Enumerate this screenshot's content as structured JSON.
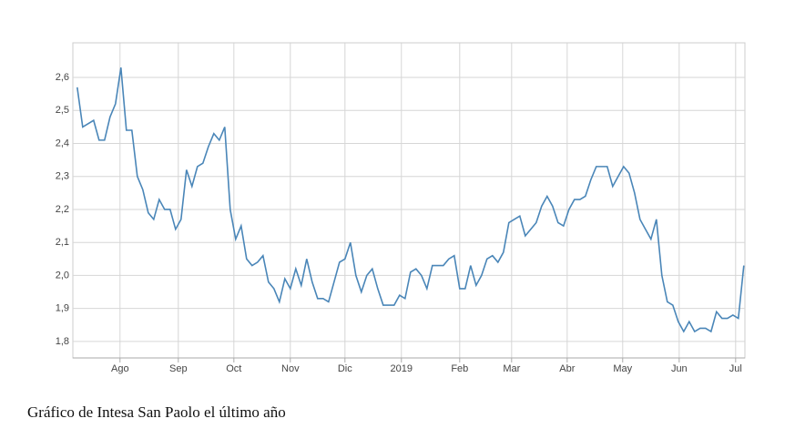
{
  "chart_data": {
    "type": "line",
    "caption": "Gráfico de Intesa San Paolo el último año",
    "color": "#4a86b8",
    "grid": true,
    "values": [
      2.57,
      2.45,
      2.46,
      2.47,
      2.41,
      2.41,
      2.48,
      2.52,
      2.63,
      2.44,
      2.44,
      2.3,
      2.26,
      2.19,
      2.17,
      2.23,
      2.2,
      2.2,
      2.14,
      2.17,
      2.32,
      2.27,
      2.33,
      2.34,
      2.39,
      2.43,
      2.41,
      2.45,
      2.2,
      2.11,
      2.15,
      2.05,
      2.03,
      2.04,
      2.06,
      1.98,
      1.96,
      1.92,
      1.99,
      1.96,
      2.02,
      1.97,
      2.05,
      1.98,
      1.93,
      1.93,
      1.92,
      1.98,
      2.04,
      2.05,
      2.1,
      2.0,
      1.95,
      2.0,
      2.02,
      1.96,
      1.91,
      1.91,
      1.91,
      1.94,
      1.93,
      2.01,
      2.02,
      2.0,
      1.96,
      2.03,
      2.03,
      2.03,
      2.05,
      2.06,
      1.96,
      1.96,
      2.03,
      1.97,
      2.0,
      2.05,
      2.06,
      2.04,
      2.07,
      2.16,
      2.17,
      2.18,
      2.12,
      2.14,
      2.16,
      2.21,
      2.24,
      2.21,
      2.16,
      2.15,
      2.2,
      2.23,
      2.23,
      2.24,
      2.29,
      2.33,
      2.33,
      2.33,
      2.27,
      2.3,
      2.33,
      2.31,
      2.25,
      2.17,
      2.14,
      2.11,
      2.17,
      2.0,
      1.92,
      1.91,
      1.86,
      1.83,
      1.86,
      1.83,
      1.84,
      1.84,
      1.83,
      1.89,
      1.87,
      1.87,
      1.88,
      1.87,
      2.03
    ],
    "xlim": [
      -0.8,
      122.2
    ],
    "xticks": [
      {
        "value": 7.83,
        "label": "Ago"
      },
      {
        "value": 18.5,
        "label": "Sep"
      },
      {
        "value": 28.67,
        "label": "Oct"
      },
      {
        "value": 39,
        "label": "Nov"
      },
      {
        "value": 49,
        "label": "Dic"
      },
      {
        "value": 59.33,
        "label": "2019"
      },
      {
        "value": 70,
        "label": "Feb"
      },
      {
        "value": 79.5,
        "label": "Mar"
      },
      {
        "value": 89.67,
        "label": "Abr"
      },
      {
        "value": 99.83,
        "label": "May"
      },
      {
        "value": 110.17,
        "label": "Jun"
      },
      {
        "value": 120.5,
        "label": "Jul"
      }
    ],
    "ylim": [
      1.75,
      2.705
    ],
    "yticks": [
      {
        "value": 1.8,
        "label": "1,8"
      },
      {
        "value": 1.9,
        "label": "1,9"
      },
      {
        "value": 2.0,
        "label": "2,0"
      },
      {
        "value": 2.1,
        "label": "2,1"
      },
      {
        "value": 2.2,
        "label": "2,2"
      },
      {
        "value": 2.3,
        "label": "2,3"
      },
      {
        "value": 2.4,
        "label": "2,4"
      },
      {
        "value": 2.5,
        "label": "2,5"
      },
      {
        "value": 2.6,
        "label": "2,6"
      }
    ]
  }
}
